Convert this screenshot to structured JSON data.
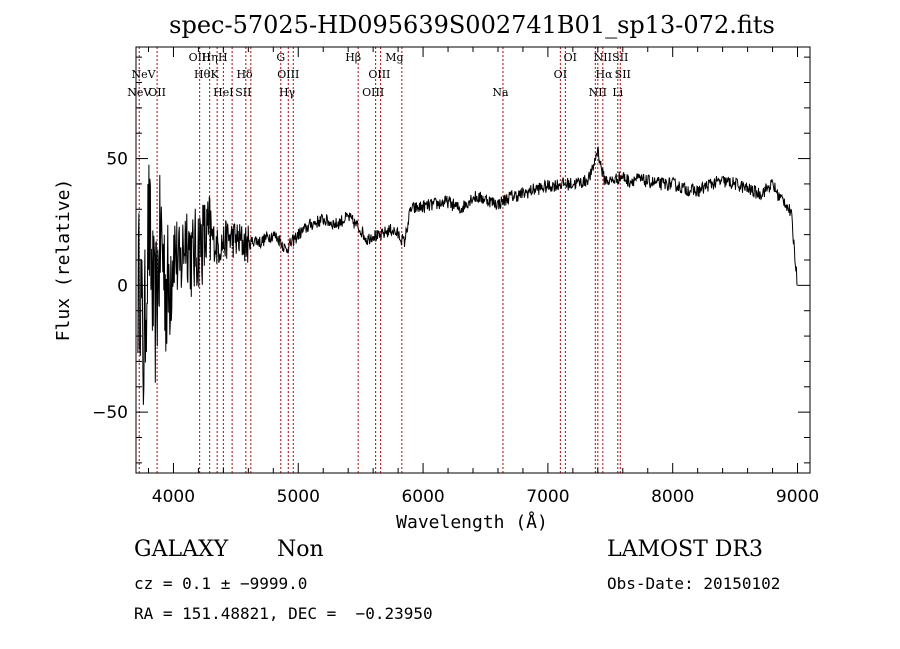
{
  "chart_data": {
    "type": "line",
    "title": "spec-57025-HD095639S002741B01_sp13-072.fits",
    "xlabel": "Wavelength (Å)",
    "ylabel": "Flux (relative)",
    "xlim": [
      3700,
      9100
    ],
    "ylim": [
      -74,
      94
    ],
    "x_ticks": [
      4000,
      5000,
      6000,
      7000,
      8000,
      9000
    ],
    "x_tick_labels": [
      "4000",
      "5000",
      "6000",
      "7000",
      "8000",
      "9000"
    ],
    "y_ticks": [
      -50,
      0,
      50
    ],
    "y_tick_labels": [
      "−50",
      "0",
      "50"
    ],
    "x_minor_step": 200,
    "y_minor_step": 10,
    "series": [
      {
        "name": "flux",
        "x": [
          3700,
          3730,
          3760,
          3800,
          3850,
          3900,
          3950,
          4000,
          4050,
          4100,
          4150,
          4200,
          4250,
          4300,
          4350,
          4400,
          4450,
          4500,
          4550,
          4600,
          4650,
          4700,
          4750,
          4800,
          4850,
          4900,
          4950,
          5000,
          5100,
          5200,
          5300,
          5400,
          5500,
          5550,
          5600,
          5650,
          5700,
          5750,
          5800,
          5850,
          5900,
          6000,
          6100,
          6200,
          6300,
          6400,
          6500,
          6600,
          6700,
          6800,
          6900,
          7000,
          7100,
          7200,
          7300,
          7350,
          7400,
          7420,
          7450,
          7500,
          7550,
          7600,
          7650,
          7700,
          7800,
          7900,
          8000,
          8100,
          8200,
          8300,
          8400,
          8500,
          8600,
          8700,
          8800,
          8850,
          8900,
          8950,
          9000
        ],
        "y": [
          -10,
          5,
          -30,
          25,
          -15,
          20,
          -5,
          18,
          5,
          22,
          10,
          16,
          18,
          20,
          15,
          17,
          19,
          18,
          17,
          16,
          18,
          17,
          19,
          20,
          18,
          14,
          17,
          20,
          24,
          26,
          24,
          27,
          22,
          18,
          20,
          19,
          21,
          22,
          20,
          17,
          30,
          31,
          32,
          33,
          30,
          35,
          34,
          32,
          35,
          36,
          38,
          39,
          40,
          40,
          41,
          44,
          54,
          48,
          42,
          41,
          42,
          43,
          41,
          42,
          41,
          40,
          40,
          38,
          37,
          40,
          41,
          40,
          38,
          36,
          40,
          35,
          33,
          28,
          0
        ]
      }
    ],
    "spectral_lines": [
      {
        "label": "NeV",
        "wavelength": 3726,
        "row": 3
      },
      {
        "label": "NeV",
        "wavelength": 3760,
        "row": 1
      },
      {
        "label": "OII",
        "wavelength": 3869,
        "row": 3
      },
      {
        "label": "OIII",
        "wavelength": 4210,
        "row": 0
      },
      {
        "label": "Hη",
        "wavelength": 4290,
        "row": 0
      },
      {
        "label": "H",
        "wavelength": 4395,
        "row": 0
      },
      {
        "label": "Hθ",
        "wavelength": 4230,
        "row": 1
      },
      {
        "label": "K",
        "wavelength": 4330,
        "row": 1
      },
      {
        "label": "HeI",
        "wavelength": 4400,
        "row": 3
      },
      {
        "label": "Hδ",
        "wavelength": 4570,
        "row": 1
      },
      {
        "label": "SII",
        "wavelength": 4560,
        "row": 3
      },
      {
        "label": "G",
        "wavelength": 4860,
        "row": 0
      },
      {
        "label": "OIII",
        "wavelength": 4920,
        "row": 1
      },
      {
        "label": "Hγ",
        "wavelength": 4910,
        "row": 3
      },
      {
        "label": "Hβ",
        "wavelength": 5440,
        "row": 0
      },
      {
        "label": "Mg",
        "wavelength": 5770,
        "row": 0
      },
      {
        "label": "OIII",
        "wavelength": 5650,
        "row": 1
      },
      {
        "label": "OIII",
        "wavelength": 5600,
        "row": 3
      },
      {
        "label": "Na",
        "wavelength": 6620,
        "row": 3
      },
      {
        "label": "OI",
        "wavelength": 7180,
        "row": 0
      },
      {
        "label": "OI",
        "wavelength": 7100,
        "row": 2
      },
      {
        "label": "NII",
        "wavelength": 7440,
        "row": 0
      },
      {
        "label": "SII",
        "wavelength": 7580,
        "row": 0
      },
      {
        "label": "Hα",
        "wavelength": 7450,
        "row": 2
      },
      {
        "label": "SII",
        "wavelength": 7600,
        "row": 2
      },
      {
        "label": "NII",
        "wavelength": 7400,
        "row": 3
      },
      {
        "label": "Li",
        "wavelength": 7560,
        "row": 3
      }
    ],
    "marker_lines": [
      3726,
      3869,
      4210,
      4290,
      4350,
      4400,
      4470,
      4580,
      4620,
      4860,
      4920,
      4960,
      5480,
      5620,
      5660,
      5830,
      6640,
      7100,
      7140,
      7380,
      7400,
      7440,
      7560,
      7580
    ]
  },
  "info": {
    "object_class": "GALAXY",
    "subclass": "Non",
    "survey": "LAMOST DR3",
    "redshift": "cz = 0.1 ± −9999.0",
    "obs_date": "Obs-Date: 20150102",
    "coordinates": "RA = 151.48821, DEC =  −0.23950"
  },
  "colors": {
    "axes": "#000000",
    "spectrum": "#000000",
    "line_markers": "#c00000",
    "background": "#ffffff"
  }
}
